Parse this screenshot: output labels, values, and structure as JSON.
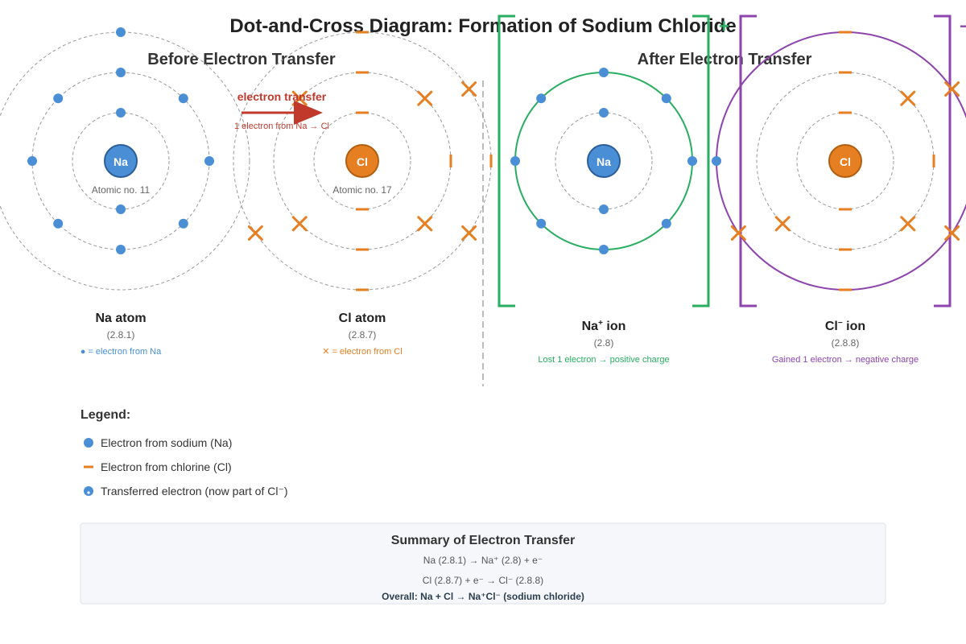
{
  "title": "Dot-and-Cross Diagram: Formation of Sodium Chloride",
  "before_heading": "Before Electron Transfer",
  "after_heading": "After Electron Transfer",
  "transfer": {
    "label": "electron transfer",
    "note": "1 electron from Na → Cl"
  },
  "na_atom": {
    "symbol": "Na",
    "atomic_no": "Atomic no. 11",
    "name": "Na atom",
    "config": "(2.8.1)",
    "key": "● = electron from Na"
  },
  "cl_atom": {
    "symbol": "Cl",
    "atomic_no": "Atomic no. 17",
    "name": "Cl atom",
    "config": "(2.8.7)",
    "key": "✕ = electron from Cl"
  },
  "na_ion": {
    "symbol": "Na",
    "name": "Na",
    "charge": "+",
    "suffix": " ion",
    "config": "(2.8)",
    "note": "Lost 1 electron → positive charge",
    "bracket_charge": "+"
  },
  "cl_ion": {
    "symbol": "Cl",
    "name": "Cl",
    "charge": "−",
    "suffix": " ion",
    "config": "(2.8.8)",
    "note": "Gained 1 electron → negative charge",
    "bracket_charge": "−"
  },
  "legend": {
    "title": "Legend:",
    "items": [
      {
        "icon": "dot",
        "label": "Electron from sodium (Na)"
      },
      {
        "icon": "dash",
        "label": "Electron from chlorine (Cl)"
      },
      {
        "icon": "transferred",
        "label": "Transferred electron (now part of Cl⁻)"
      }
    ]
  },
  "summary": {
    "title": "Summary of Electron Transfer",
    "line1": "Na (2.8.1) → Na⁺ (2.8) + e⁻",
    "line2": "Cl (2.8.7) + e⁻ → Cl⁻ (2.8.8)",
    "overall": "Overall: Na + Cl → Na⁺Cl⁻ (sodium chloride)"
  },
  "colors": {
    "na_blue": "#4a8fd6",
    "cl_orange": "#e67e22",
    "transfer_red": "#c0392b",
    "na_ion_green": "#27ae60",
    "cl_ion_purple": "#8e44ad",
    "text_dark": "#222222",
    "text_grey": "#666666"
  }
}
